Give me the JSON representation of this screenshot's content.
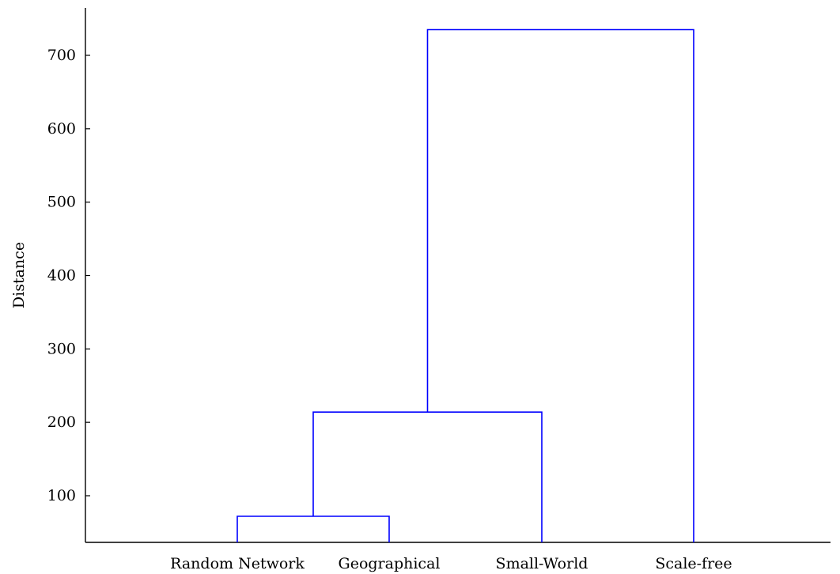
{
  "chart_data": {
    "type": "dendrogram",
    "title": "",
    "xlabel": "",
    "ylabel": "Distance",
    "ylim": [
      40,
      740
    ],
    "yticks": [
      100,
      200,
      300,
      400,
      500,
      600,
      700
    ],
    "grid": false,
    "legend": "none",
    "line_color": "#0000ff",
    "leaves": [
      "Random Network",
      "Geographical",
      "Small-World",
      "Scale-free"
    ],
    "merges": [
      {
        "left": "Random Network",
        "right": "Geographical",
        "height": 72
      },
      {
        "left": "Random Network + Geographical",
        "right": "Small-World",
        "height": 214
      },
      {
        "left": "Random Network + Geographical + Small-World",
        "right": "Scale-free",
        "height": 735
      }
    ]
  }
}
